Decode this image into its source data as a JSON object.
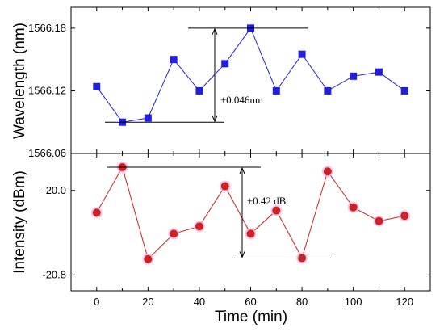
{
  "chart_data": [
    {
      "type": "line",
      "ylabel": "Wavelength (nm)",
      "xlim": [
        -10,
        130
      ],
      "ylim": [
        1566.06,
        1566.2
      ],
      "yticks": [
        "1566.06",
        "1566.12",
        "1566.18"
      ],
      "series": [
        {
          "color": "#1f1fdd",
          "marker": "square",
          "x": [
            0,
            10,
            20,
            30,
            40,
            50,
            60,
            70,
            80,
            90,
            100,
            110,
            120
          ],
          "values": [
            1566.124,
            1566.09,
            1566.094,
            1566.15,
            1566.12,
            1566.146,
            1566.18,
            1566.12,
            1566.155,
            1566.12,
            1566.134,
            1566.138,
            1566.12
          ]
        }
      ],
      "annotation": {
        "text": "±0.046nm",
        "range": [
          1566.09,
          1566.18
        ]
      }
    },
    {
      "type": "line",
      "ylabel": "Intensity (dBm)",
      "xlabel": "Time (min)",
      "xlim": [
        -10,
        130
      ],
      "ylim": [
        -20.95,
        -19.65
      ],
      "yticks": [
        "-20.0",
        "-20.8"
      ],
      "xticks": [
        "0",
        "20",
        "40",
        "60",
        "80",
        "100",
        "120"
      ],
      "series": [
        {
          "color": "#cc2222",
          "marker": "circle",
          "x": [
            0,
            10,
            20,
            30,
            40,
            50,
            60,
            70,
            80,
            90,
            100,
            110,
            120
          ],
          "values": [
            -20.21,
            -19.78,
            -20.65,
            -20.41,
            -20.34,
            -19.96,
            -20.41,
            -20.19,
            -20.64,
            -19.82,
            -20.16,
            -20.29,
            -20.24
          ]
        }
      ],
      "annotation": {
        "text": "±0.42 dB",
        "range": [
          -20.64,
          -19.78
        ]
      }
    }
  ]
}
